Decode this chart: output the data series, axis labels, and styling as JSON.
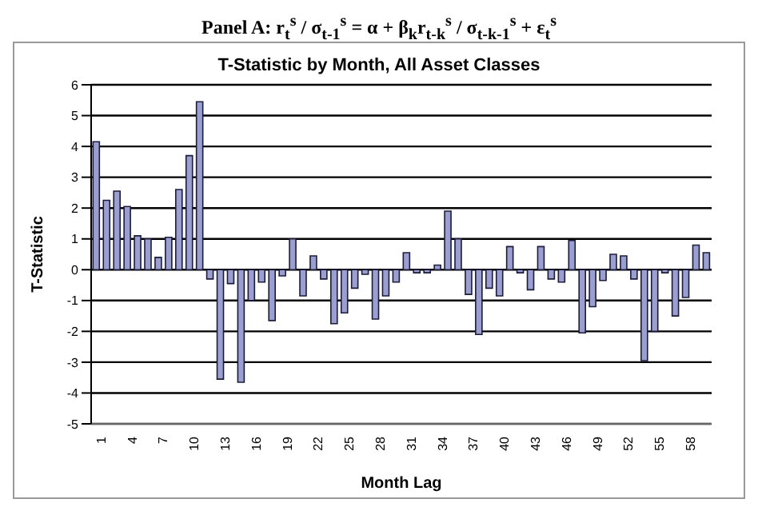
{
  "chart_data": {
    "type": "bar",
    "title": "Panel A: r$_{t}$$^{s}$ / σ$_{t-1}$$^{s}$ = α + β$_{k}$r$_{t-k}$$^{s}$ / σ$_{t-k-1}$$^{s}$ + ε$_{t}$$^{s}$",
    "subtitle": "T-Statistic by Month, All Asset Classes",
    "xlabel": "Month Lag",
    "ylabel": "T-Statistic",
    "categories": [
      "1",
      null,
      null,
      "4",
      null,
      null,
      "7",
      null,
      null,
      "10",
      null,
      null,
      "13",
      null,
      null,
      "16",
      null,
      null,
      "19",
      null,
      null,
      "22",
      null,
      null,
      "25",
      null,
      null,
      "28",
      null,
      null,
      "31",
      null,
      null,
      "34",
      null,
      null,
      "37",
      null,
      null,
      "40",
      null,
      null,
      "43",
      null,
      null,
      "46",
      null,
      null,
      "49",
      null,
      null,
      "52",
      null,
      null,
      "55",
      null,
      null,
      "58",
      null,
      null
    ],
    "values": [
      4.15,
      2.25,
      2.55,
      2.05,
      1.1,
      1.0,
      0.4,
      1.05,
      2.6,
      3.7,
      5.45,
      -0.3,
      -3.55,
      -0.45,
      -3.65,
      -1.0,
      -0.4,
      -1.65,
      -0.2,
      1.0,
      -0.85,
      0.45,
      -0.3,
      -1.75,
      -1.4,
      -0.6,
      -0.15,
      -1.6,
      -0.85,
      -0.4,
      0.55,
      -0.1,
      -0.1,
      0.15,
      1.9,
      1.0,
      -0.8,
      -2.1,
      -0.6,
      -0.85,
      0.75,
      -0.1,
      -0.65,
      0.75,
      -0.3,
      -0.4,
      0.95,
      -2.05,
      -1.2,
      -0.35,
      0.5,
      0.45,
      -0.3,
      -2.95,
      -2.0,
      -0.1,
      -1.5,
      -0.9,
      0.8,
      0.55
    ],
    "color": "#9a9fd0",
    "ylim": [
      -5,
      6
    ],
    "yticks": [
      -5,
      -4,
      -3,
      -2,
      -1,
      0,
      1,
      2,
      3,
      4,
      5,
      6
    ],
    "grid": "y"
  }
}
